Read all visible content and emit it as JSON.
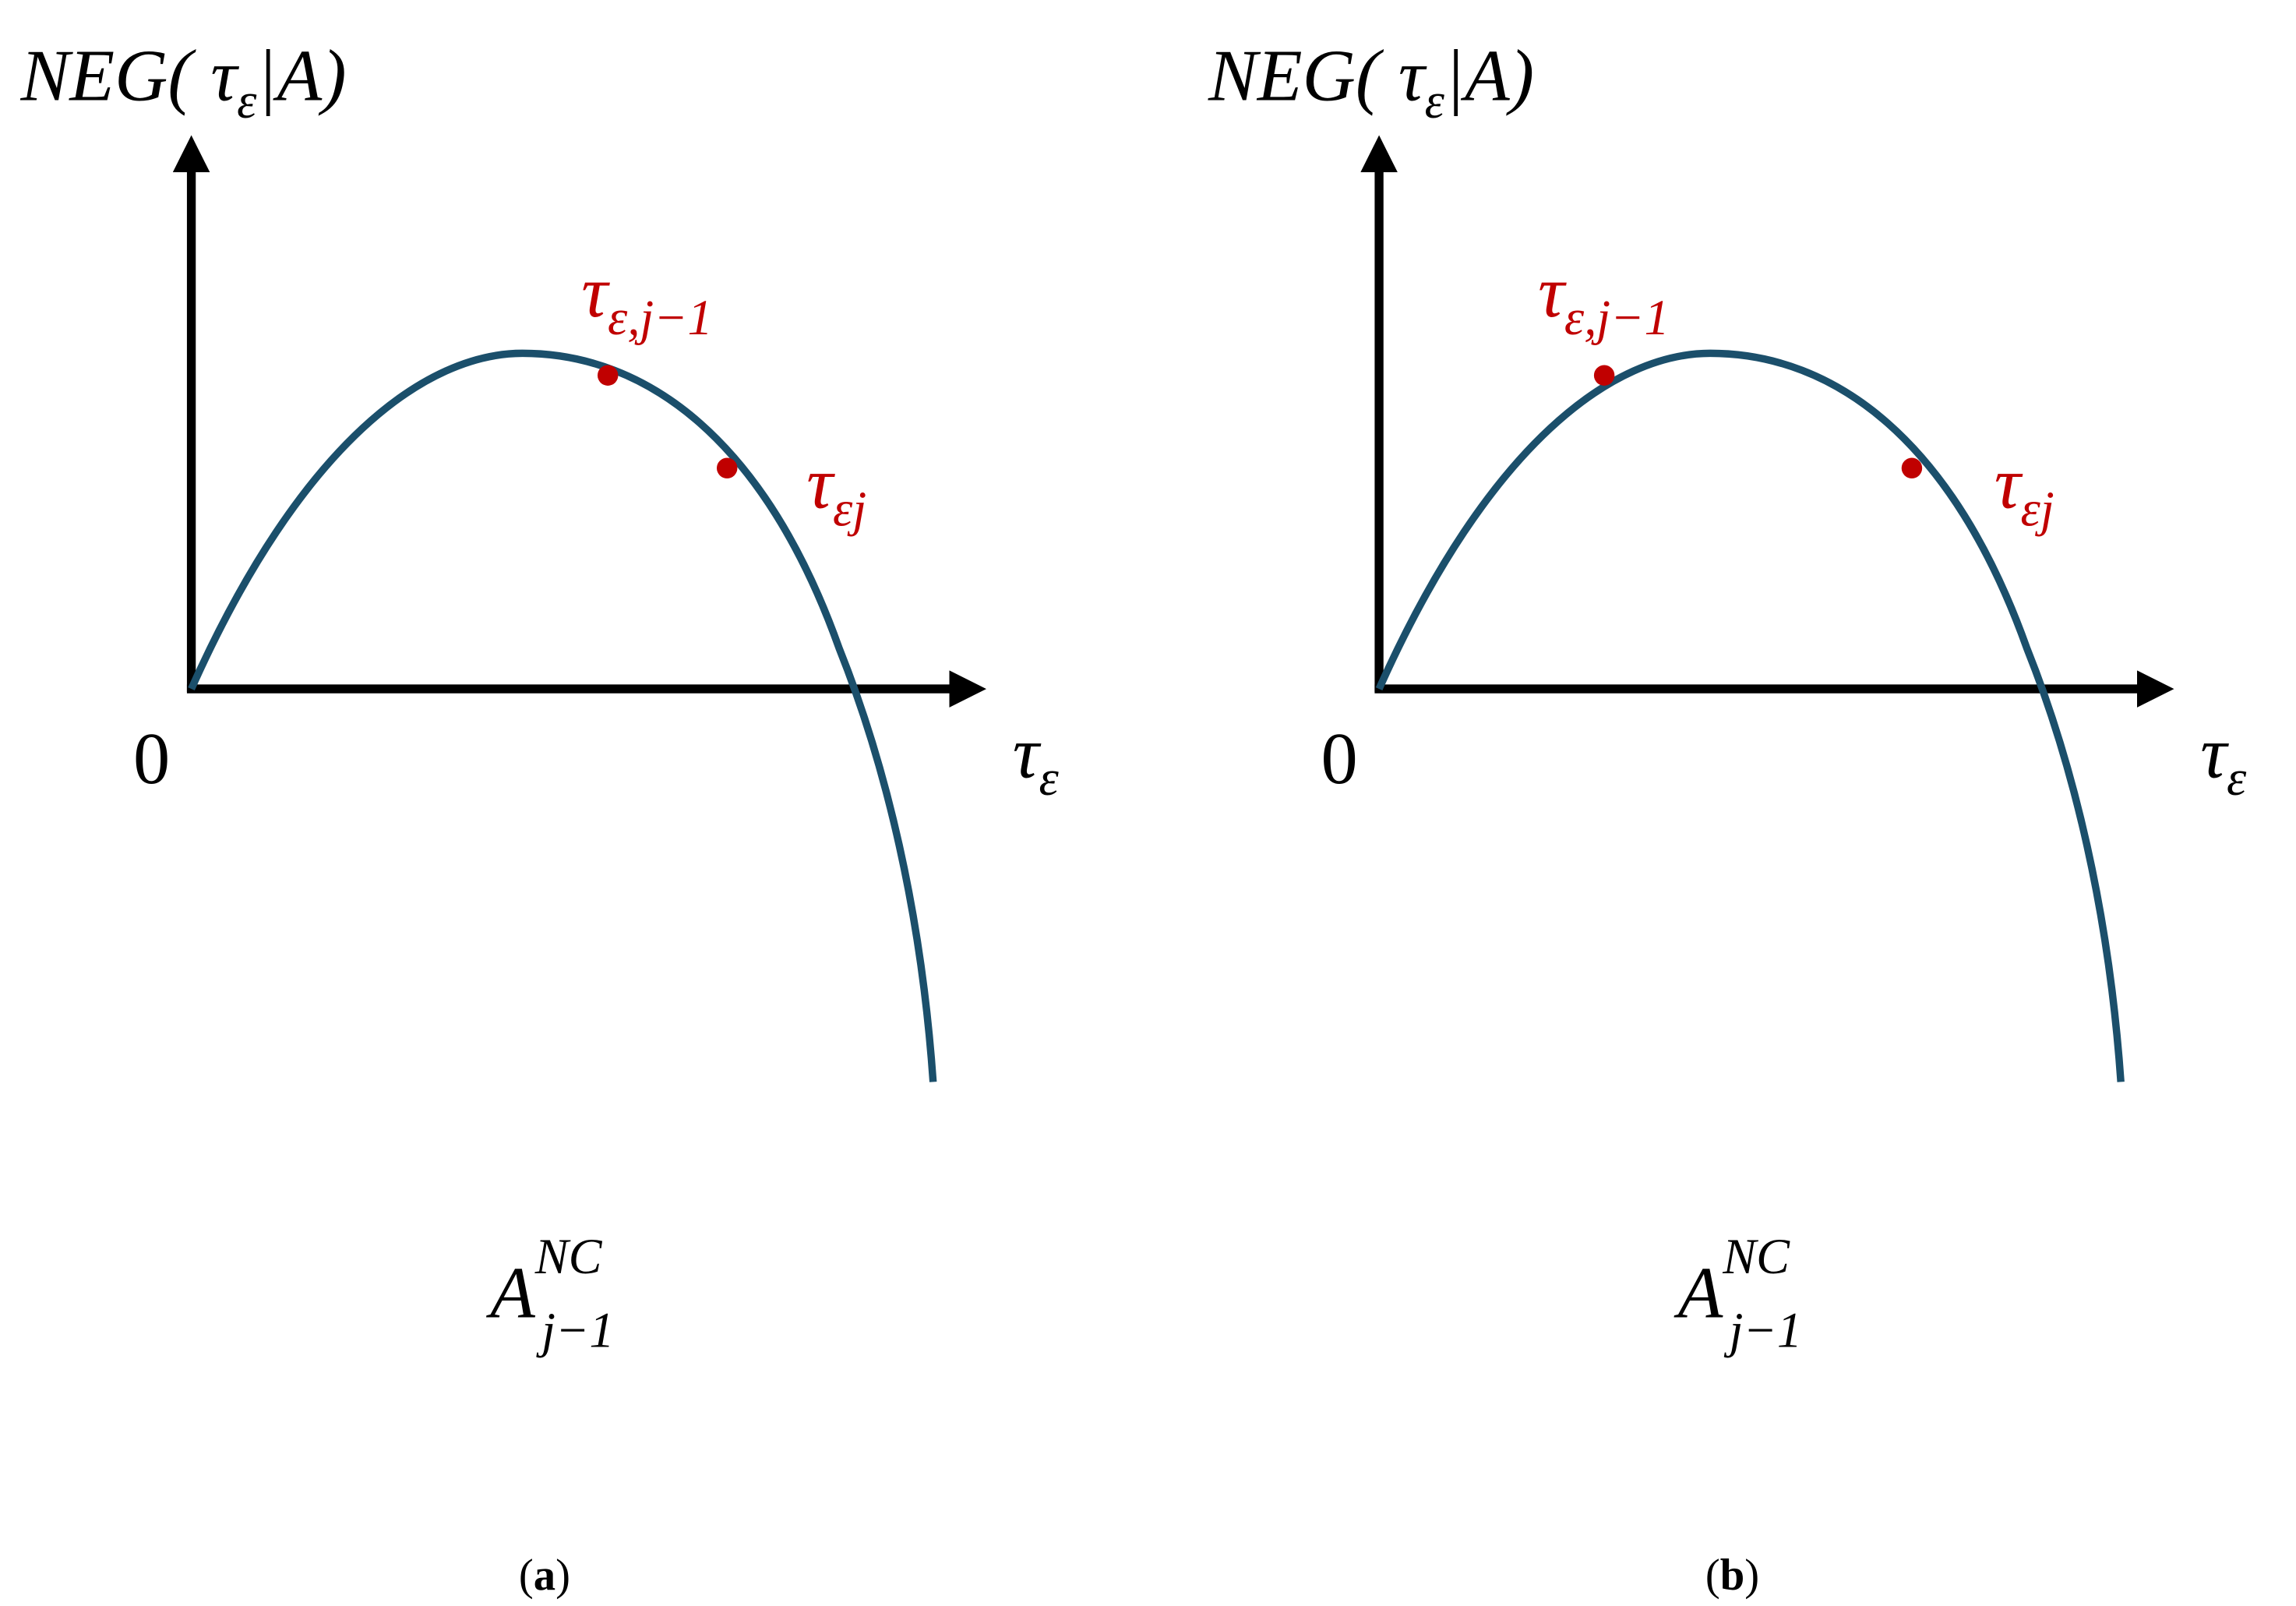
{
  "panels": [
    {
      "y_axis_label": {
        "text": "NEG( τ",
        "sub": "ε",
        "tail": "|A)"
      },
      "origin": "0",
      "x_axis_label": {
        "text": "τ",
        "sub": "ε"
      },
      "points": [
        {
          "text": "τ",
          "sub": "ε,j−1"
        },
        {
          "text": "τ",
          "sub": "εj"
        }
      ],
      "set_label": {
        "text": "A",
        "sup": "NC",
        "sub": "j−1"
      },
      "caption": {
        "open": "(",
        "letter": "a",
        "close": ")"
      }
    },
    {
      "y_axis_label": {
        "text": "NEG( τ",
        "sub": "ε",
        "tail": "|A)"
      },
      "origin": "0",
      "x_axis_label": {
        "text": "τ",
        "sub": "ε"
      },
      "points": [
        {
          "text": "τ",
          "sub": "ε,j−1"
        },
        {
          "text": "τ",
          "sub": "εj"
        }
      ],
      "set_label": {
        "text": "A",
        "sup": "NC",
        "sub": "j−1"
      },
      "caption": {
        "open": "(",
        "letter": "b",
        "close": ")"
      }
    }
  ]
}
